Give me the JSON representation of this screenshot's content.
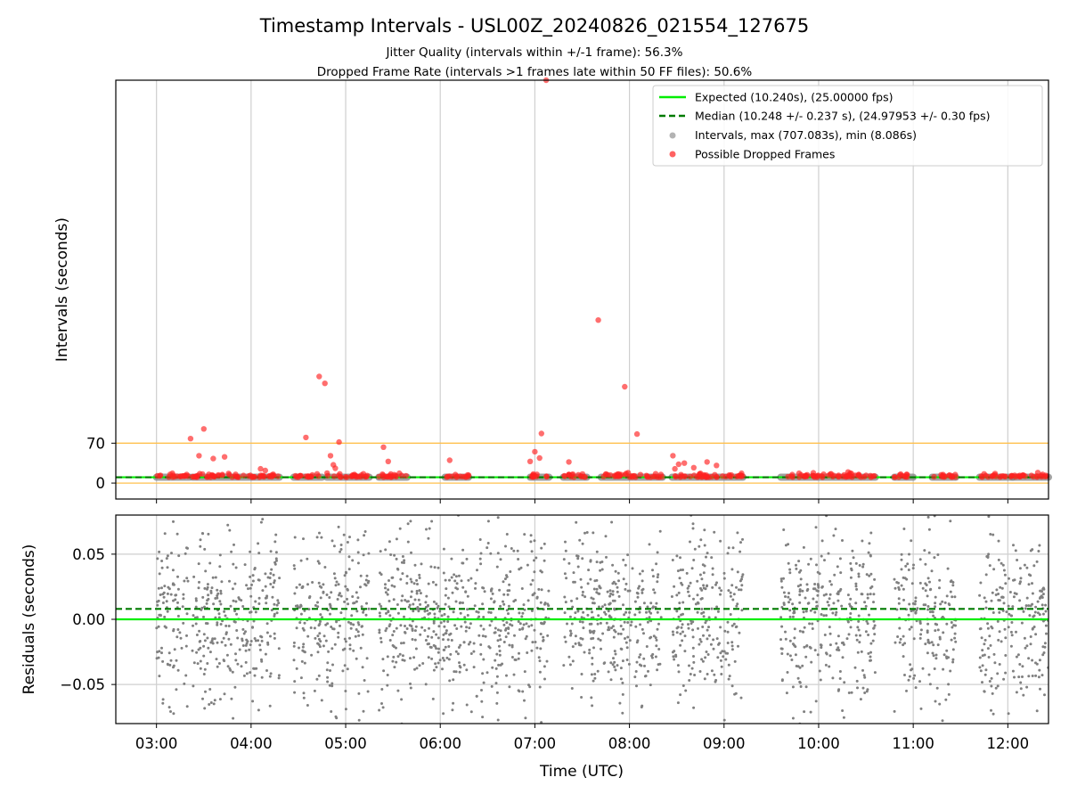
{
  "chart_data": {
    "type": "scatter",
    "title": "Timestamp Intervals - USL00Z_20240826_021554_127675",
    "subtitle_lines": [
      "Jitter Quality (intervals within +/-1 frame): 56.3%",
      "Dropped Frame Rate (intervals >1 frames late within 50 FF files): 50.6%"
    ],
    "xlabel": "Time (UTC)",
    "x_ticks": [
      "03:00",
      "04:00",
      "05:00",
      "06:00",
      "07:00",
      "08:00",
      "09:00",
      "10:00",
      "11:00",
      "12:00"
    ],
    "xlim_hours": [
      2.57,
      12.43
    ],
    "grid": true,
    "panels": [
      {
        "name": "intervals",
        "ylabel": "Intervals (seconds)",
        "y_ticks": [
          "0",
          "70"
        ],
        "ylim": [
          -28,
          707
        ],
        "reference_lines": [
          {
            "label": "Expected (10.240s), (25.00000 fps)",
            "value": 10.24,
            "color": "#00ee00",
            "style": "solid"
          },
          {
            "label": "Median (10.248 +/- 0.237 s), (24.97953 +/- 0.30 fps)",
            "value": 10.248,
            "color": "#007a00",
            "style": "dashed"
          }
        ],
        "threshold_lines": [
          {
            "value": 70,
            "color": "#ffc04d"
          },
          {
            "value": 0,
            "color": "#ffc04d"
          }
        ],
        "legend_position": "top-right",
        "legend": [
          {
            "label": "Expected (10.240s), (25.00000 fps)",
            "kind": "line",
            "color": "#00ee00",
            "style": "solid"
          },
          {
            "label": "Median (10.248 +/- 0.237 s), (24.97953 +/- 0.30 fps)",
            "kind": "line",
            "color": "#007a00",
            "style": "dashed"
          },
          {
            "label": "Intervals, max (707.083s), min (8.086s)",
            "kind": "marker",
            "color": "#808080"
          },
          {
            "label": "Possible Dropped Frames",
            "kind": "marker",
            "color": "#ff2020"
          }
        ],
        "normal_interval_band": {
          "value": 10.24,
          "color": "#808080",
          "segments_hours": [
            [
              3.0,
              3.35
            ],
            [
              3.38,
              4.3
            ],
            [
              4.45,
              4.75
            ],
            [
              4.8,
              5.25
            ],
            [
              5.35,
              5.65
            ],
            [
              6.05,
              6.3
            ],
            [
              6.95,
              7.15
            ],
            [
              7.3,
              7.55
            ],
            [
              7.7,
              8.35
            ],
            [
              8.45,
              9.2
            ],
            [
              9.6,
              10.6
            ],
            [
              10.8,
              11.0
            ],
            [
              11.2,
              11.45
            ],
            [
              11.7,
              12.05
            ],
            [
              12.05,
              12.43
            ]
          ]
        },
        "dropped_frame_outliers": [
          {
            "t": 3.36,
            "v": 78
          },
          {
            "t": 3.5,
            "v": 95
          },
          {
            "t": 3.45,
            "v": 48
          },
          {
            "t": 3.6,
            "v": 43
          },
          {
            "t": 3.72,
            "v": 46
          },
          {
            "t": 4.1,
            "v": 25
          },
          {
            "t": 4.15,
            "v": 22
          },
          {
            "t": 4.58,
            "v": 80
          },
          {
            "t": 4.72,
            "v": 187
          },
          {
            "t": 4.78,
            "v": 175
          },
          {
            "t": 4.84,
            "v": 48
          },
          {
            "t": 4.87,
            "v": 32
          },
          {
            "t": 4.89,
            "v": 26
          },
          {
            "t": 4.93,
            "v": 72
          },
          {
            "t": 5.4,
            "v": 63
          },
          {
            "t": 5.45,
            "v": 38
          },
          {
            "t": 6.1,
            "v": 40
          },
          {
            "t": 6.95,
            "v": 38
          },
          {
            "t": 7.0,
            "v": 55
          },
          {
            "t": 7.05,
            "v": 44
          },
          {
            "t": 7.07,
            "v": 87
          },
          {
            "t": 7.12,
            "v": 707
          },
          {
            "t": 7.36,
            "v": 37
          },
          {
            "t": 7.36,
            "v": 15
          },
          {
            "t": 7.67,
            "v": 286
          },
          {
            "t": 7.95,
            "v": 169
          },
          {
            "t": 8.08,
            "v": 86
          },
          {
            "t": 8.46,
            "v": 48
          },
          {
            "t": 8.52,
            "v": 33
          },
          {
            "t": 8.58,
            "v": 35
          },
          {
            "t": 8.68,
            "v": 27
          },
          {
            "t": 8.82,
            "v": 37
          },
          {
            "t": 8.92,
            "v": 31
          },
          {
            "t": 8.48,
            "v": 25
          }
        ]
      },
      {
        "name": "residuals",
        "ylabel": "Residuals (seconds)",
        "y_ticks": [
          "0.05",
          "0.00",
          "−0.05"
        ],
        "ylim": [
          -0.08,
          0.08
        ],
        "reference_lines": [
          {
            "value": 0.0,
            "color": "#00ee00",
            "style": "solid"
          },
          {
            "value": 0.008,
            "color": "#007a00",
            "style": "dashed"
          }
        ],
        "point_color": "#808080",
        "point_count": 2400,
        "residual_spread": 0.045,
        "coverage_hours": [
          [
            3.0,
            3.35
          ],
          [
            3.38,
            4.3
          ],
          [
            4.45,
            5.25
          ],
          [
            5.35,
            6.95
          ],
          [
            6.95,
            7.15
          ],
          [
            7.3,
            8.35
          ],
          [
            8.45,
            9.2
          ],
          [
            9.6,
            10.6
          ],
          [
            10.8,
            11.45
          ],
          [
            11.7,
            12.43
          ]
        ]
      }
    ]
  }
}
